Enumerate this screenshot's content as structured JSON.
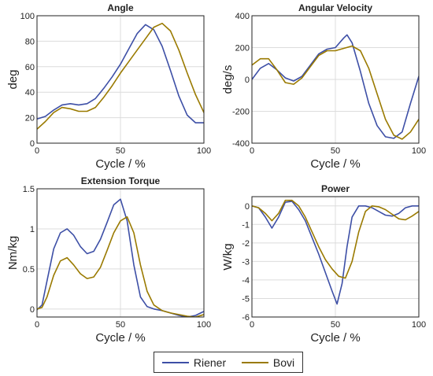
{
  "colors": {
    "Riener": "#3d4fa6",
    "Bovi": "#9a7a00"
  },
  "legend": {
    "entries": [
      "Riener",
      "Bovi"
    ]
  },
  "chart_data": [
    {
      "type": "line",
      "title": "Angle",
      "xlabel": "Cycle / %",
      "ylabel": "deg",
      "xlim": [
        0,
        100
      ],
      "ylim": [
        0,
        100
      ],
      "xticks": [
        0,
        50,
        100
      ],
      "yticks": [
        0,
        20,
        40,
        60,
        80,
        100
      ],
      "grid": true,
      "series": [
        {
          "name": "Riener",
          "x": [
            0,
            5,
            10,
            15,
            20,
            25,
            30,
            35,
            40,
            45,
            50,
            55,
            60,
            65,
            70,
            75,
            80,
            85,
            90,
            95,
            100
          ],
          "y": [
            19,
            21,
            26,
            30,
            31,
            30,
            31,
            35,
            43,
            52,
            62,
            74,
            86,
            93,
            89,
            76,
            57,
            37,
            22,
            16,
            16
          ]
        },
        {
          "name": "Bovi",
          "x": [
            0,
            5,
            10,
            15,
            20,
            25,
            30,
            35,
            40,
            45,
            50,
            55,
            60,
            65,
            70,
            75,
            80,
            85,
            90,
            95,
            100
          ],
          "y": [
            11,
            17,
            24,
            28,
            27,
            25,
            25,
            28,
            36,
            45,
            55,
            64,
            73,
            82,
            91,
            94,
            88,
            73,
            55,
            38,
            24
          ]
        }
      ]
    },
    {
      "type": "line",
      "title": "Angular Velocity",
      "xlabel": "Cycle / %",
      "ylabel": "deg/s",
      "xlim": [
        0,
        100
      ],
      "ylim": [
        -400,
        400
      ],
      "xticks": [
        0,
        50,
        100
      ],
      "yticks": [
        -400,
        -200,
        0,
        200,
        400
      ],
      "grid": true,
      "series": [
        {
          "name": "Riener",
          "x": [
            0,
            5,
            10,
            15,
            20,
            25,
            30,
            35,
            40,
            45,
            50,
            55,
            57,
            60,
            65,
            70,
            75,
            80,
            85,
            90,
            95,
            100
          ],
          "y": [
            0,
            70,
            100,
            60,
            10,
            -10,
            20,
            90,
            160,
            190,
            200,
            260,
            280,
            230,
            50,
            -150,
            -290,
            -360,
            -370,
            -330,
            -150,
            20
          ]
        },
        {
          "name": "Bovi",
          "x": [
            0,
            5,
            10,
            15,
            20,
            25,
            30,
            35,
            40,
            45,
            50,
            55,
            60,
            65,
            70,
            75,
            80,
            85,
            90,
            95,
            100
          ],
          "y": [
            90,
            130,
            130,
            60,
            -20,
            -30,
            10,
            80,
            150,
            180,
            180,
            195,
            210,
            180,
            70,
            -90,
            -250,
            -350,
            -375,
            -330,
            -250
          ]
        }
      ]
    },
    {
      "type": "line",
      "title": "Extension Torque",
      "xlabel": "Cycle / %",
      "ylabel": "Nm/kg",
      "xlim": [
        0,
        100
      ],
      "ylim": [
        -0.1,
        1.5
      ],
      "xticks": [
        0,
        50,
        100
      ],
      "yticks": [
        0,
        0.5,
        1,
        1.5
      ],
      "grid": true,
      "series": [
        {
          "name": "Riener",
          "x": [
            0,
            3,
            6,
            10,
            14,
            18,
            22,
            26,
            30,
            34,
            38,
            42,
            46,
            50,
            54,
            58,
            62,
            66,
            70,
            75,
            80,
            85,
            90,
            95,
            100
          ],
          "y": [
            -0.01,
            0.05,
            0.35,
            0.75,
            0.95,
            1.0,
            0.92,
            0.78,
            0.69,
            0.72,
            0.87,
            1.08,
            1.3,
            1.37,
            1.1,
            0.55,
            0.15,
            0.03,
            0.0,
            -0.02,
            -0.05,
            -0.08,
            -0.1,
            -0.08,
            -0.03
          ]
        },
        {
          "name": "Bovi",
          "x": [
            0,
            3,
            6,
            10,
            14,
            18,
            22,
            26,
            30,
            34,
            38,
            42,
            46,
            50,
            54,
            58,
            62,
            66,
            70,
            75,
            80,
            85,
            90,
            95,
            100
          ],
          "y": [
            0.0,
            0.02,
            0.15,
            0.42,
            0.6,
            0.64,
            0.55,
            0.44,
            0.38,
            0.4,
            0.52,
            0.73,
            0.95,
            1.1,
            1.15,
            0.95,
            0.55,
            0.22,
            0.05,
            -0.02,
            -0.05,
            -0.07,
            -0.09,
            -0.1,
            -0.07
          ]
        }
      ]
    },
    {
      "type": "line",
      "title": "Power",
      "xlabel": "Cycle / %",
      "ylabel": "W/kg",
      "xlim": [
        0,
        100
      ],
      "ylim": [
        -6,
        0.5
      ],
      "xticks": [
        0,
        50,
        100
      ],
      "yticks": [
        -6,
        -5,
        -4,
        -3,
        -2,
        -1,
        0
      ],
      "grid": true,
      "series": [
        {
          "name": "Riener",
          "x": [
            0,
            4,
            8,
            12,
            16,
            20,
            24,
            28,
            32,
            36,
            40,
            44,
            48,
            51,
            54,
            57,
            60,
            64,
            68,
            72,
            76,
            80,
            84,
            88,
            92,
            96,
            100
          ],
          "y": [
            0,
            -0.1,
            -0.6,
            -1.2,
            -0.6,
            0.2,
            0.25,
            -0.2,
            -0.8,
            -1.7,
            -2.6,
            -3.6,
            -4.6,
            -5.3,
            -4.2,
            -2.2,
            -0.6,
            0.0,
            0.0,
            -0.1,
            -0.3,
            -0.5,
            -0.55,
            -0.4,
            -0.1,
            0.0,
            0.0
          ]
        },
        {
          "name": "Bovi",
          "x": [
            0,
            4,
            8,
            12,
            16,
            20,
            24,
            28,
            32,
            36,
            40,
            44,
            48,
            52,
            56,
            60,
            64,
            68,
            72,
            76,
            80,
            84,
            88,
            92,
            96,
            100
          ],
          "y": [
            0,
            -0.1,
            -0.4,
            -0.8,
            -0.4,
            0.3,
            0.3,
            0.0,
            -0.6,
            -1.4,
            -2.2,
            -2.9,
            -3.4,
            -3.8,
            -3.9,
            -3.0,
            -1.4,
            -0.3,
            0.0,
            -0.05,
            -0.2,
            -0.45,
            -0.7,
            -0.75,
            -0.55,
            -0.3
          ]
        }
      ]
    }
  ]
}
